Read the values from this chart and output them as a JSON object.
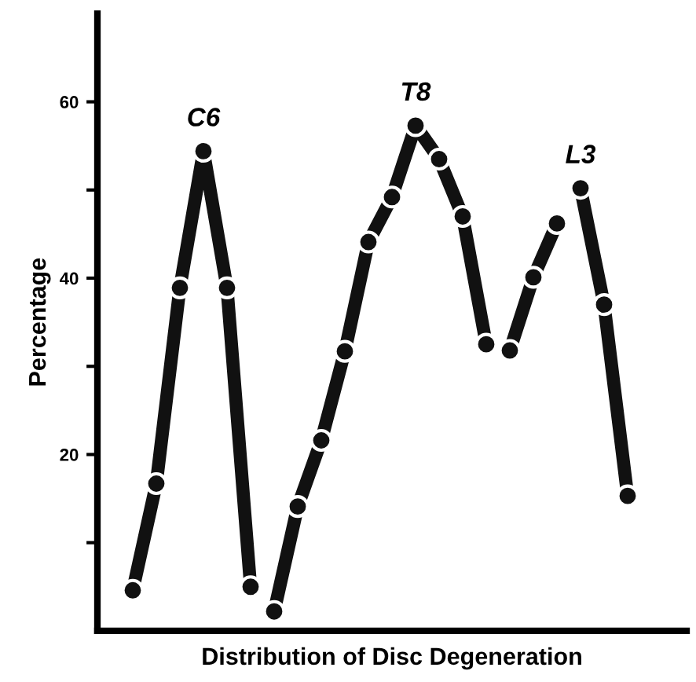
{
  "chart_data": {
    "type": "line",
    "xlabel": "Distribution of Disc Degeneration",
    "ylabel": "Percentage",
    "categories": [
      null,
      null,
      null,
      null,
      null,
      null,
      null,
      null,
      null,
      null,
      null,
      null,
      null,
      null,
      null,
      null,
      null,
      null,
      null,
      null,
      null,
      null,
      null,
      null,
      null
    ],
    "series": [
      {
        "color": "#111111",
        "values": [
          null,
          4.6,
          16.7,
          38.9,
          54.4,
          38.9,
          5.0,
          null,
          null,
          null,
          null,
          null,
          null,
          null,
          null,
          null,
          null,
          null,
          null,
          null,
          null,
          null,
          null,
          null,
          null
        ]
      },
      {
        "color": "#111111",
        "values": [
          null,
          null,
          null,
          null,
          null,
          null,
          null,
          2.2,
          14.1,
          21.6,
          31.7,
          44.1,
          49.2,
          57.3,
          53.5,
          47.0,
          32.5,
          null,
          null,
          null,
          null,
          null,
          null,
          null,
          null
        ]
      },
      {
        "color": "#111111",
        "values": [
          null,
          null,
          null,
          null,
          null,
          null,
          null,
          null,
          null,
          null,
          null,
          null,
          null,
          null,
          null,
          null,
          null,
          31.8,
          40.1,
          46.2,
          null,
          null,
          null,
          null,
          null
        ]
      },
      {
        "color": "#111111",
        "values": [
          null,
          null,
          null,
          null,
          null,
          null,
          null,
          null,
          null,
          null,
          null,
          null,
          null,
          null,
          null,
          null,
          null,
          null,
          null,
          null,
          50.2,
          37.0,
          15.3,
          null,
          null
        ]
      }
    ],
    "ylim": [
      0,
      70
    ],
    "yticks": [
      {
        "value": 10,
        "label": null
      },
      20,
      {
        "value": 30,
        "label": null
      },
      40,
      {
        "value": 50,
        "label": null
      },
      60
    ],
    "annotations": [
      {
        "text": "C6",
        "y": 54.4
      },
      {
        "text": "T8",
        "y": 57.3
      },
      {
        "text": "L3",
        "y": 50.2
      }
    ],
    "marker": "circle",
    "line_style": "solid",
    "grid": false,
    "legend": false
  }
}
